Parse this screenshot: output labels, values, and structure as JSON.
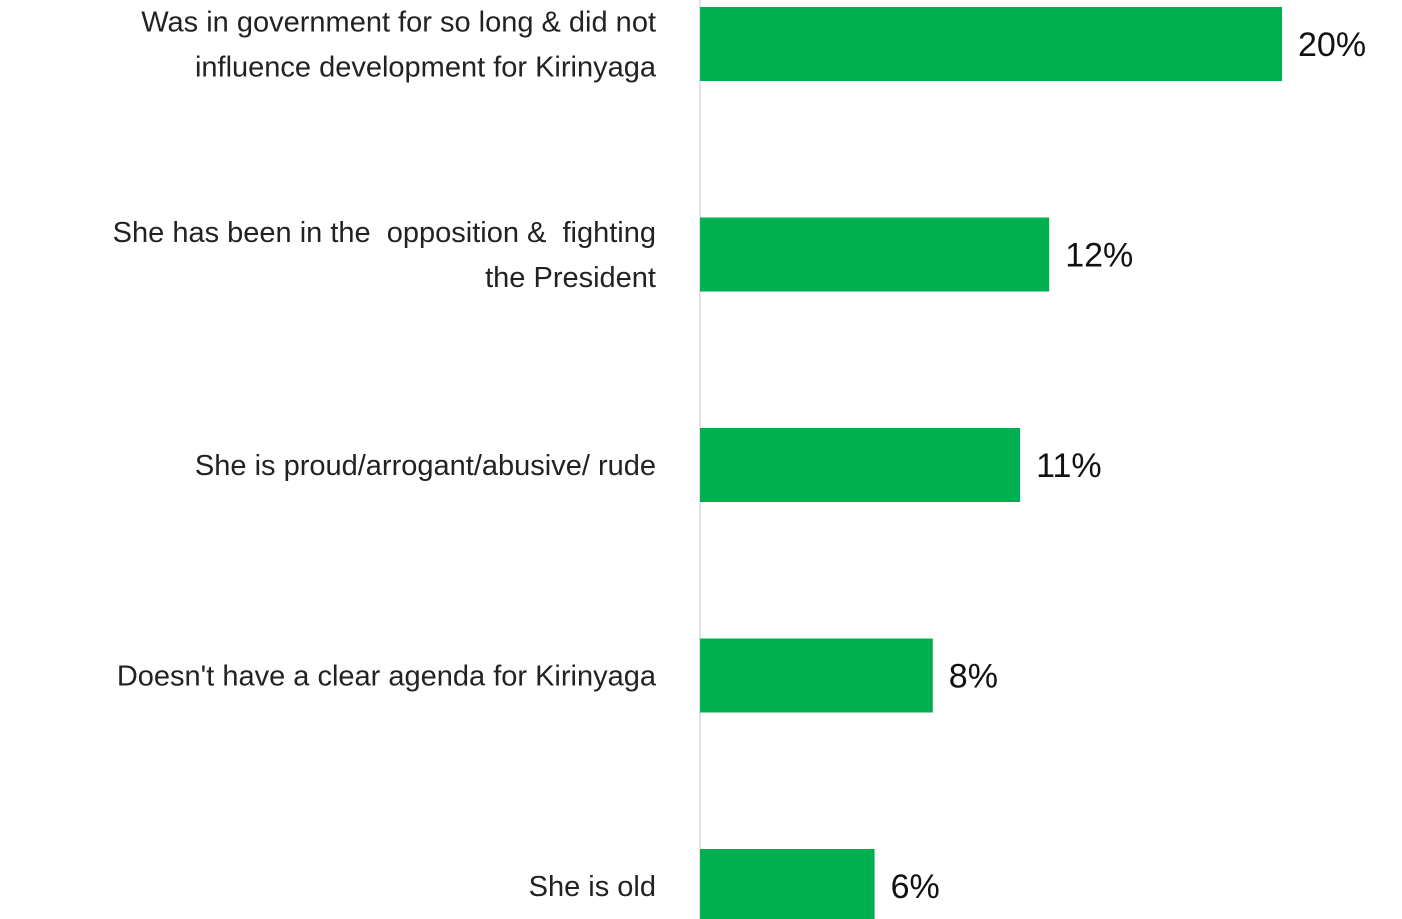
{
  "chart_data": {
    "type": "bar",
    "orientation": "horizontal",
    "categories": [
      "Was in government for so long & did not influence development for Kirinyaga",
      "She has been in the  opposition &  fighting the President",
      "She is proud/arrogant/abusive/ rude",
      "Doesn't have a clear agenda for Kirinyaga",
      "She is old"
    ],
    "category_lines": [
      [
        "Was in government for so long & did not",
        "influence development for Kirinyaga"
      ],
      [
        "She has been in the  opposition &  fighting",
        "the President"
      ],
      [
        "She is proud/arrogant/abusive/ rude"
      ],
      [
        "Doesn't have a clear agenda for Kirinyaga"
      ],
      [
        "She is old"
      ]
    ],
    "values": [
      20,
      12,
      11,
      8,
      6
    ],
    "data_labels": [
      "20%",
      "12%",
      "11%",
      "8%",
      "6%"
    ],
    "unit": "%",
    "title": "",
    "xlabel": "",
    "ylabel": "",
    "xlim": [
      0,
      20
    ],
    "grid": false,
    "legend": "none",
    "bar_color": "#00B050",
    "axis_color": "#D9D9D9"
  }
}
